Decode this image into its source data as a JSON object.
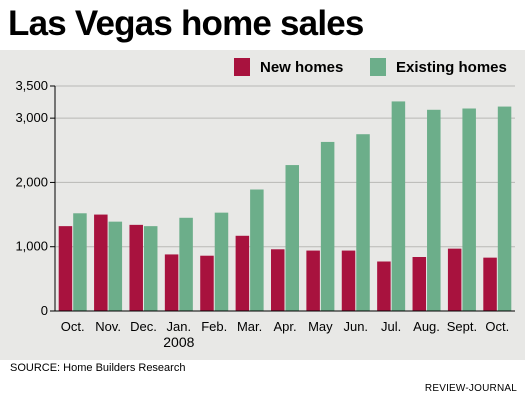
{
  "title": "Las Vegas home sales",
  "colors": {
    "new_homes": "#a8123e",
    "existing_homes": "#6cae8a",
    "panel_background": "#e8e8e6"
  },
  "legend": {
    "position": "top-right",
    "items": [
      {
        "label": "New homes",
        "color": "#a8123e"
      },
      {
        "label": "Existing homes",
        "color": "#6cae8a"
      }
    ]
  },
  "source": "SOURCE: Home Builders Research",
  "credit": "REVIEW-JOURNAL",
  "chart_data": {
    "type": "bar",
    "title": "Las Vegas home sales",
    "xlabel": "",
    "ylabel": "",
    "ylim": [
      0,
      3500
    ],
    "yticks": [
      0,
      1000,
      2000,
      3000,
      3500
    ],
    "ytick_labels": [
      "0",
      "1,000",
      "2,000",
      "3,000",
      "3,500"
    ],
    "grid": true,
    "categories": [
      "Oct.",
      "Nov.",
      "Dec.",
      "Jan.",
      "Feb.",
      "Mar.",
      "Apr.",
      "May",
      "Jun.",
      "Jul.",
      "Aug.",
      "Sept.",
      "Oct."
    ],
    "x_annotation": {
      "category_index": 3,
      "text": "2008"
    },
    "series": [
      {
        "name": "New homes",
        "color": "#a8123e",
        "values": [
          1320,
          1500,
          1340,
          880,
          860,
          1170,
          960,
          940,
          940,
          770,
          840,
          970,
          830
        ]
      },
      {
        "name": "Existing homes",
        "color": "#6cae8a",
        "values": [
          1520,
          1390,
          1320,
          1450,
          1530,
          1890,
          2270,
          2630,
          2750,
          3260,
          3130,
          3150,
          3180
        ]
      }
    ]
  }
}
